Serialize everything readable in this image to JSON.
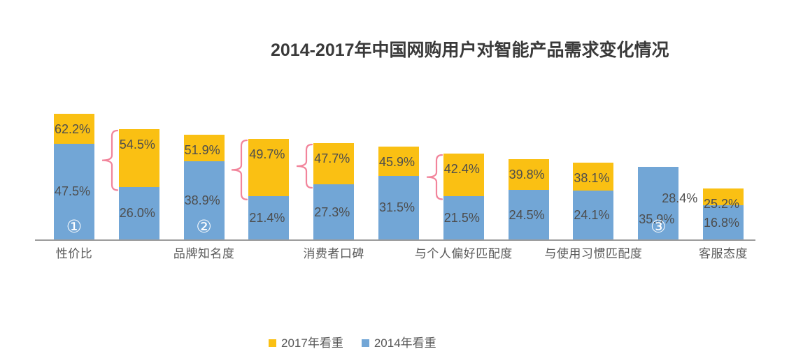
{
  "title": {
    "text": "2014-2017年中国网购用户对智能产品需求变化情况"
  },
  "colors": {
    "yellow": "#FAC013",
    "blue": "#72A6D6",
    "brace": "#F2849B",
    "axis": "#9C9C9C",
    "value_label": "#4D4D4D",
    "category_label": "#595959",
    "title": "#3A3A3A",
    "marker": "#FFFFFF"
  },
  "legend": {
    "items": [
      {
        "label": "2017年看重",
        "color_key": "yellow"
      },
      {
        "label": "2014年看重",
        "color_key": "blue"
      }
    ]
  },
  "chart_data": {
    "type": "bar",
    "subtype": "overlaid-comparison-bars (yellow = 2017 value, blue = 2014 value drawn in front; yellow visible part = growth)",
    "title": "2014-2017年中国网购用户对智能产品需求变化情况",
    "unit": "percent",
    "ylim": [
      0,
      65
    ],
    "grid": false,
    "legend_position": "bottom",
    "series": [
      {
        "name": "2017年看重",
        "color_key": "yellow"
      },
      {
        "name": "2014年看重",
        "color_key": "blue"
      }
    ],
    "categories": [
      "性价比",
      "品牌知名度",
      "消费者口碑",
      "与个人偏好匹配度",
      "与使用习惯匹配度",
      "客服态度"
    ],
    "bars": [
      {
        "v2017": 62.2,
        "label_2017": "62.2%",
        "v2014": 47.5,
        "label_2014": "47.5%",
        "category": "性价比",
        "marker": "①"
      },
      {
        "v2017": 54.5,
        "label_2017": "54.5%",
        "v2014": 26.0,
        "label_2014": "26.0%",
        "brace": true
      },
      {
        "v2017": 51.9,
        "label_2017": "51.9%",
        "v2014": 38.9,
        "label_2014": "38.9%",
        "category": "品牌知名度",
        "marker": "②"
      },
      {
        "v2017": 49.7,
        "label_2017": "49.7%",
        "v2014": 21.4,
        "label_2014": "21.4%",
        "brace": true
      },
      {
        "v2017": 47.7,
        "label_2017": "47.7%",
        "v2014": 27.3,
        "label_2014": "27.3%",
        "category": "消费者口碑",
        "brace": true
      },
      {
        "v2017": 45.9,
        "label_2017": "45.9%",
        "v2014": 31.5,
        "label_2014": "31.5%"
      },
      {
        "v2017": 42.4,
        "label_2017": "42.4%",
        "v2014": 21.5,
        "label_2014": "21.5%",
        "category": "与个人偏好匹配度",
        "brace": true
      },
      {
        "v2017": 39.8,
        "label_2017": "39.8%",
        "v2014": 24.5,
        "label_2014": "24.5%"
      },
      {
        "v2017": 38.1,
        "label_2017": "38.1%",
        "v2014": 24.1,
        "label_2014": "24.1%",
        "category": "与使用习惯匹配度"
      },
      {
        "v2017": 28.4,
        "label_2017": "28.4%",
        "v2014": 35.9,
        "label_2014": "35.9%",
        "marker": "③",
        "label_2017_outside": true
      },
      {
        "v2017": 25.2,
        "label_2017": "25.2%",
        "v2014": 16.8,
        "label_2014": "16.8%",
        "category": "客服态度"
      }
    ]
  }
}
